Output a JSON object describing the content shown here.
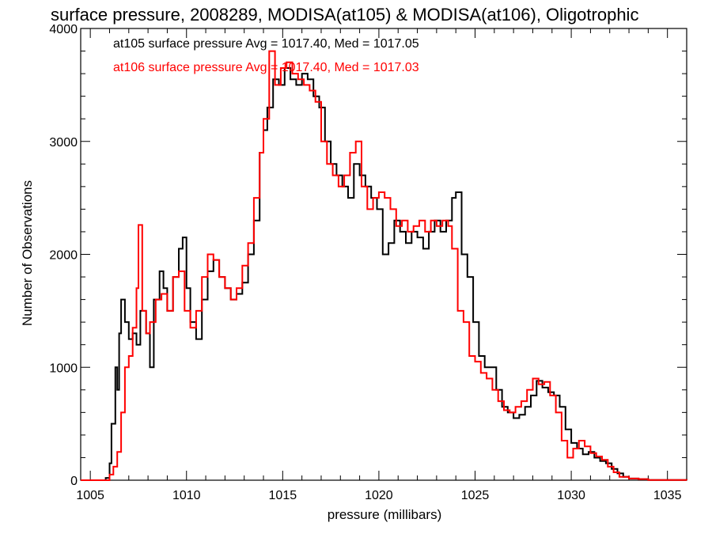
{
  "chart_data": {
    "type": "line",
    "title": "surface pressure, 2008289, MODISA(at105) & MODISA(at106), Oligotrophic",
    "xlabel": "pressure (millibars)",
    "ylabel": "Number of Observations",
    "xlim": [
      1004.5,
      1036
    ],
    "ylim": [
      0,
      4000
    ],
    "xticks": [
      1005,
      1010,
      1015,
      1020,
      1025,
      1030,
      1035
    ],
    "yticks": [
      0,
      1000,
      2000,
      3000,
      4000
    ],
    "grid": false,
    "legend_position": "top-left",
    "series": [
      {
        "name": "at105 surface pressure Avg = 1017.40, Med = 1017.05",
        "color": "#000000",
        "points": [
          [
            1004.5,
            0
          ],
          [
            1005.4,
            0
          ],
          [
            1005.8,
            20
          ],
          [
            1006.0,
            150
          ],
          [
            1006.1,
            500
          ],
          [
            1006.3,
            1000
          ],
          [
            1006.4,
            800
          ],
          [
            1006.5,
            1300
          ],
          [
            1006.6,
            1600
          ],
          [
            1006.8,
            1400
          ],
          [
            1007.0,
            1250
          ],
          [
            1007.2,
            1300
          ],
          [
            1007.4,
            1200
          ],
          [
            1007.6,
            1500
          ],
          [
            1007.9,
            1300
          ],
          [
            1008.1,
            1000
          ],
          [
            1008.3,
            1600
          ],
          [
            1008.6,
            1850
          ],
          [
            1008.8,
            1700
          ],
          [
            1009.0,
            1500
          ],
          [
            1009.3,
            1800
          ],
          [
            1009.6,
            2050
          ],
          [
            1009.8,
            2150
          ],
          [
            1010.0,
            1700
          ],
          [
            1010.2,
            1400
          ],
          [
            1010.5,
            1250
          ],
          [
            1010.8,
            1600
          ],
          [
            1011.1,
            1850
          ],
          [
            1011.4,
            1950
          ],
          [
            1011.7,
            1800
          ],
          [
            1012.0,
            1700
          ],
          [
            1012.3,
            1600
          ],
          [
            1012.6,
            1650
          ],
          [
            1012.9,
            1750
          ],
          [
            1013.2,
            2000
          ],
          [
            1013.5,
            2300
          ],
          [
            1013.8,
            2900
          ],
          [
            1014.0,
            3100
          ],
          [
            1014.2,
            3300
          ],
          [
            1014.5,
            3550
          ],
          [
            1014.8,
            3500
          ],
          [
            1015.1,
            3650
          ],
          [
            1015.4,
            3550
          ],
          [
            1015.7,
            3500
          ],
          [
            1016.0,
            3600
          ],
          [
            1016.3,
            3550
          ],
          [
            1016.6,
            3400
          ],
          [
            1016.9,
            3300
          ],
          [
            1017.2,
            3000
          ],
          [
            1017.5,
            2800
          ],
          [
            1017.8,
            2700
          ],
          [
            1018.1,
            2600
          ],
          [
            1018.4,
            2500
          ],
          [
            1018.7,
            2800
          ],
          [
            1019.0,
            2700
          ],
          [
            1019.3,
            2600
          ],
          [
            1019.6,
            2500
          ],
          [
            1019.9,
            2400
          ],
          [
            1020.2,
            2000
          ],
          [
            1020.5,
            2100
          ],
          [
            1020.8,
            2300
          ],
          [
            1021.1,
            2200
          ],
          [
            1021.4,
            2100
          ],
          [
            1021.7,
            2200
          ],
          [
            1022.0,
            2150
          ],
          [
            1022.3,
            2050
          ],
          [
            1022.6,
            2200
          ],
          [
            1022.9,
            2300
          ],
          [
            1023.2,
            2200
          ],
          [
            1023.5,
            2300
          ],
          [
            1023.8,
            2500
          ],
          [
            1024.0,
            2550
          ],
          [
            1024.3,
            2000
          ],
          [
            1024.6,
            1800
          ],
          [
            1024.9,
            1400
          ],
          [
            1025.2,
            1100
          ],
          [
            1025.5,
            1000
          ],
          [
            1025.8,
            1000
          ],
          [
            1026.1,
            800
          ],
          [
            1026.4,
            650
          ],
          [
            1026.7,
            600
          ],
          [
            1027.0,
            550
          ],
          [
            1027.3,
            580
          ],
          [
            1027.6,
            650
          ],
          [
            1027.9,
            750
          ],
          [
            1028.2,
            880
          ],
          [
            1028.5,
            820
          ],
          [
            1028.8,
            780
          ],
          [
            1029.1,
            750
          ],
          [
            1029.4,
            650
          ],
          [
            1029.7,
            450
          ],
          [
            1030.0,
            330
          ],
          [
            1030.3,
            280
          ],
          [
            1030.6,
            230
          ],
          [
            1030.9,
            250
          ],
          [
            1031.2,
            200
          ],
          [
            1031.5,
            170
          ],
          [
            1031.8,
            150
          ],
          [
            1032.1,
            100
          ],
          [
            1032.4,
            60
          ],
          [
            1032.7,
            30
          ],
          [
            1033.0,
            15
          ],
          [
            1033.5,
            10
          ],
          [
            1034.0,
            2
          ],
          [
            1036.0,
            0
          ]
        ]
      },
      {
        "name": "at106 surface pressure Avg = 1017.40, Med = 1017.03",
        "color": "#ff0000",
        "points": [
          [
            1004.5,
            0
          ],
          [
            1005.6,
            0
          ],
          [
            1006.0,
            50
          ],
          [
            1006.2,
            120
          ],
          [
            1006.4,
            250
          ],
          [
            1006.6,
            600
          ],
          [
            1006.8,
            1000
          ],
          [
            1007.0,
            1100
          ],
          [
            1007.2,
            1350
          ],
          [
            1007.4,
            1700
          ],
          [
            1007.5,
            2260
          ],
          [
            1007.7,
            1500
          ],
          [
            1007.9,
            1300
          ],
          [
            1008.1,
            1400
          ],
          [
            1008.4,
            1600
          ],
          [
            1008.7,
            1650
          ],
          [
            1009.0,
            1500
          ],
          [
            1009.3,
            1800
          ],
          [
            1009.6,
            1850
          ],
          [
            1009.9,
            1500
          ],
          [
            1010.2,
            1350
          ],
          [
            1010.5,
            1500
          ],
          [
            1010.8,
            1800
          ],
          [
            1011.1,
            2000
          ],
          [
            1011.4,
            1950
          ],
          [
            1011.7,
            1800
          ],
          [
            1012.0,
            1700
          ],
          [
            1012.3,
            1600
          ],
          [
            1012.6,
            1700
          ],
          [
            1012.9,
            1900
          ],
          [
            1013.2,
            2100
          ],
          [
            1013.5,
            2500
          ],
          [
            1013.8,
            2900
          ],
          [
            1014.0,
            3200
          ],
          [
            1014.3,
            3800
          ],
          [
            1014.6,
            3500
          ],
          [
            1014.9,
            3650
          ],
          [
            1015.2,
            3700
          ],
          [
            1015.5,
            3600
          ],
          [
            1015.8,
            3550
          ],
          [
            1016.1,
            3500
          ],
          [
            1016.4,
            3450
          ],
          [
            1016.7,
            3350
          ],
          [
            1017.0,
            3000
          ],
          [
            1017.3,
            2800
          ],
          [
            1017.6,
            2700
          ],
          [
            1017.9,
            2600
          ],
          [
            1018.2,
            2700
          ],
          [
            1018.5,
            2900
          ],
          [
            1018.8,
            3000
          ],
          [
            1019.1,
            2600
          ],
          [
            1019.4,
            2400
          ],
          [
            1019.7,
            2500
          ],
          [
            1020.0,
            2550
          ],
          [
            1020.3,
            2500
          ],
          [
            1020.6,
            2400
          ],
          [
            1020.9,
            2250
          ],
          [
            1021.2,
            2300
          ],
          [
            1021.5,
            2200
          ],
          [
            1021.8,
            2250
          ],
          [
            1022.1,
            2300
          ],
          [
            1022.4,
            2200
          ],
          [
            1022.7,
            2300
          ],
          [
            1023.0,
            2250
          ],
          [
            1023.3,
            2300
          ],
          [
            1023.6,
            2250
          ],
          [
            1023.8,
            2050
          ],
          [
            1024.1,
            1500
          ],
          [
            1024.4,
            1400
          ],
          [
            1024.7,
            1100
          ],
          [
            1025.0,
            1050
          ],
          [
            1025.3,
            950
          ],
          [
            1025.6,
            900
          ],
          [
            1025.9,
            800
          ],
          [
            1026.2,
            700
          ],
          [
            1026.5,
            620
          ],
          [
            1026.8,
            600
          ],
          [
            1027.1,
            650
          ],
          [
            1027.4,
            700
          ],
          [
            1027.7,
            800
          ],
          [
            1028.0,
            900
          ],
          [
            1028.3,
            850
          ],
          [
            1028.6,
            870
          ],
          [
            1028.9,
            750
          ],
          [
            1029.2,
            600
          ],
          [
            1029.5,
            350
          ],
          [
            1029.8,
            200
          ],
          [
            1030.1,
            280
          ],
          [
            1030.4,
            350
          ],
          [
            1030.7,
            300
          ],
          [
            1031.0,
            240
          ],
          [
            1031.3,
            210
          ],
          [
            1031.6,
            180
          ],
          [
            1031.9,
            120
          ],
          [
            1032.2,
            70
          ],
          [
            1032.5,
            30
          ],
          [
            1033.0,
            15
          ],
          [
            1033.5,
            10
          ],
          [
            1034.0,
            2
          ],
          [
            1036.0,
            0
          ]
        ]
      }
    ]
  }
}
